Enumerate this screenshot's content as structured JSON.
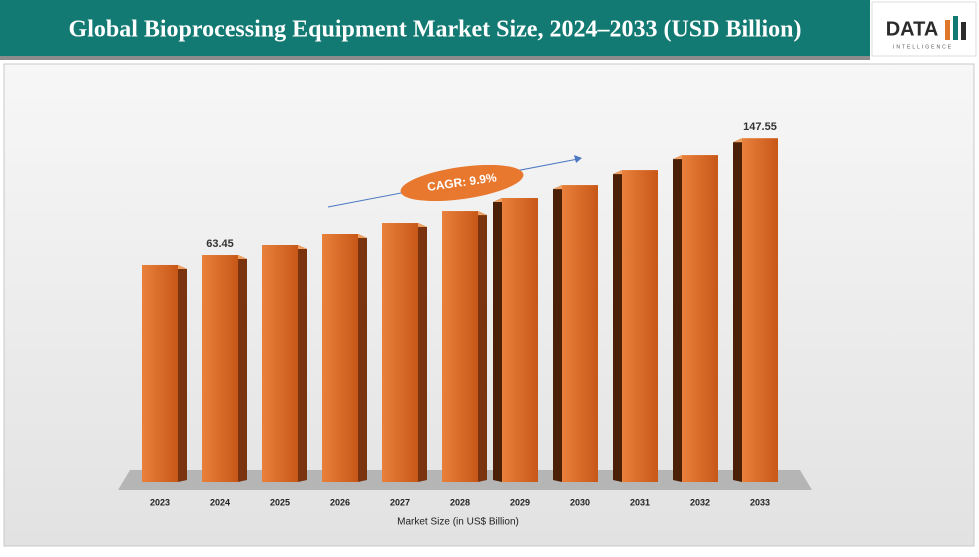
{
  "chart_data": {
    "type": "bar3d",
    "title": "Global Bioprocessing Equipment Market Size, 2024–2033 (USD Billion)",
    "xlabel": "Market Size (in US$ Billion)",
    "annotation": "CAGR: 9.9%",
    "categories": [
      "2023",
      "2024",
      "2025",
      "2026",
      "2027",
      "2028",
      "2029",
      "2030",
      "2031",
      "2032",
      "2033"
    ],
    "values": [
      56.3,
      63.45,
      70.7,
      78.6,
      86.5,
      95.1,
      104.5,
      113.8,
      124.6,
      135.4,
      147.55
    ],
    "value_labels": [
      null,
      "63.45",
      null,
      null,
      null,
      null,
      null,
      null,
      null,
      null,
      "147.55"
    ],
    "color": "#d2621e",
    "ylim": [
      -100,
      160
    ]
  },
  "logo": {
    "name": "DATA",
    "tagline": "INTELLIGENCE"
  }
}
